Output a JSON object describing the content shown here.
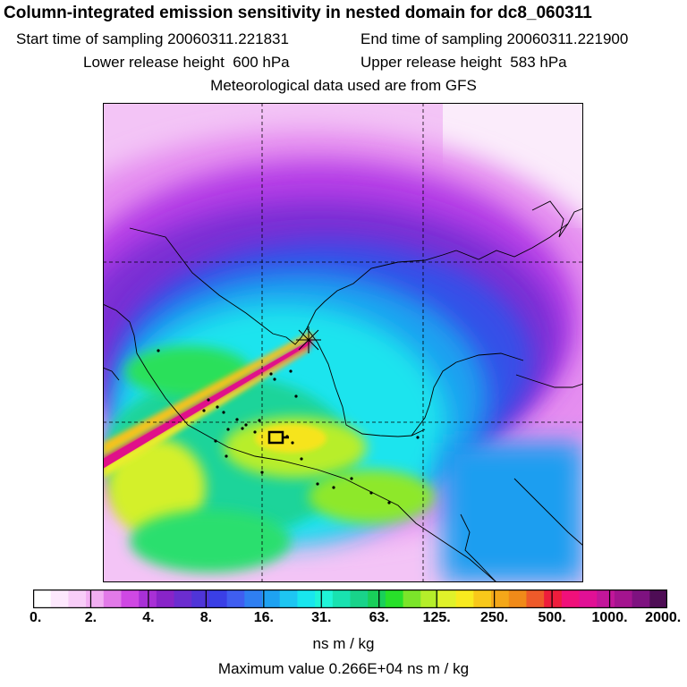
{
  "chart_data": {
    "type": "heatmap",
    "title": "Column-integrated emission sensitivity in nested domain for dc8_060311",
    "info": {
      "start_label": "Start time of sampling",
      "start_value": "20060311.221831",
      "end_label": "End time of sampling",
      "end_value": "20060311.221900",
      "lower_label": "Lower release height",
      "lower_value": "600 hPa",
      "upper_label": "Upper release height",
      "upper_value": "583 hPa",
      "met_note": "Meteorological data used are from GFS"
    },
    "colorbar": {
      "ticks": [
        "0.",
        "2.",
        "4.",
        "8.",
        "16.",
        "31.",
        "63.",
        "125.",
        "250.",
        "500.",
        "1000.",
        "2000."
      ],
      "unit": "ns m / kg",
      "colors": [
        "#ffffff",
        "#fde8fd",
        "#f8cdf8",
        "#f2aef2",
        "#e27ae8",
        "#cf48e3",
        "#a830d6",
        "#8824c8",
        "#6b2dcf",
        "#4f35d8",
        "#3a3fe6",
        "#3f5ef0",
        "#2f7ff2",
        "#1ea2f2",
        "#1ec6f2",
        "#19e6ee",
        "#1ff5d8",
        "#19e2b0",
        "#19d38a",
        "#19cf5a",
        "#28e02a",
        "#7be52a",
        "#b5ee2a",
        "#e0f22a",
        "#f8ea1f",
        "#f8c81a",
        "#f4a719",
        "#f08a19",
        "#ee5a2a",
        "#ee1d3c",
        "#f0107a",
        "#e11095",
        "#c2169a",
        "#a4148f",
        "#7e1280",
        "#4e0d55"
      ]
    },
    "max_value_text": "Maximum value  0.266E+04 ns m / kg"
  }
}
